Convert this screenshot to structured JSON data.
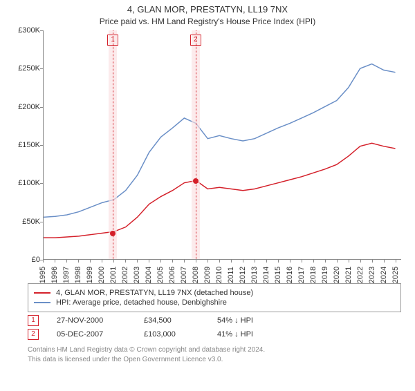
{
  "title": "4, GLAN MOR, PRESTATYN, LL19 7NX",
  "subtitle": "Price paid vs. HM Land Registry's House Price Index (HPI)",
  "chart": {
    "type": "line",
    "x_years": [
      1995,
      1996,
      1997,
      1998,
      1999,
      2000,
      2001,
      2002,
      2003,
      2004,
      2005,
      2006,
      2007,
      2008,
      2009,
      2010,
      2011,
      2012,
      2013,
      2014,
      2015,
      2016,
      2017,
      2018,
      2019,
      2020,
      2021,
      2022,
      2023,
      2024,
      2025
    ],
    "xlim": [
      1995,
      2025.5
    ],
    "ylim": [
      0,
      300000
    ],
    "ytick_step": 50000,
    "ytick_labels": [
      "£0",
      "£50K",
      "£100K",
      "£150K",
      "£200K",
      "£250K",
      "£300K"
    ],
    "grid_color": "#cccccc",
    "background_color": "#ffffff",
    "label_fontsize": 11,
    "series": [
      {
        "id": "hpi",
        "color": "#6a8fc7",
        "width": 1.5,
        "points": [
          [
            1995,
            55000
          ],
          [
            1996,
            56000
          ],
          [
            1997,
            58000
          ],
          [
            1998,
            62000
          ],
          [
            1999,
            68000
          ],
          [
            2000,
            74000
          ],
          [
            2001,
            78000
          ],
          [
            2002,
            90000
          ],
          [
            2003,
            110000
          ],
          [
            2004,
            140000
          ],
          [
            2005,
            160000
          ],
          [
            2006,
            172000
          ],
          [
            2007,
            185000
          ],
          [
            2008,
            178000
          ],
          [
            2009,
            158000
          ],
          [
            2010,
            162000
          ],
          [
            2011,
            158000
          ],
          [
            2012,
            155000
          ],
          [
            2013,
            158000
          ],
          [
            2014,
            165000
          ],
          [
            2015,
            172000
          ],
          [
            2016,
            178000
          ],
          [
            2017,
            185000
          ],
          [
            2018,
            192000
          ],
          [
            2019,
            200000
          ],
          [
            2020,
            208000
          ],
          [
            2021,
            225000
          ],
          [
            2022,
            250000
          ],
          [
            2023,
            256000
          ],
          [
            2024,
            248000
          ],
          [
            2025,
            245000
          ]
        ]
      },
      {
        "id": "property",
        "color": "#d4202a",
        "width": 1.5,
        "points": [
          [
            1995,
            28000
          ],
          [
            1996,
            28000
          ],
          [
            1997,
            29000
          ],
          [
            1998,
            30000
          ],
          [
            1999,
            32000
          ],
          [
            2000,
            34000
          ],
          [
            2001,
            36000
          ],
          [
            2002,
            42000
          ],
          [
            2003,
            55000
          ],
          [
            2004,
            72000
          ],
          [
            2005,
            82000
          ],
          [
            2006,
            90000
          ],
          [
            2007,
            100000
          ],
          [
            2008,
            103000
          ],
          [
            2009,
            92000
          ],
          [
            2010,
            94000
          ],
          [
            2011,
            92000
          ],
          [
            2012,
            90000
          ],
          [
            2013,
            92000
          ],
          [
            2014,
            96000
          ],
          [
            2015,
            100000
          ],
          [
            2016,
            104000
          ],
          [
            2017,
            108000
          ],
          [
            2018,
            113000
          ],
          [
            2019,
            118000
          ],
          [
            2020,
            124000
          ],
          [
            2021,
            135000
          ],
          [
            2022,
            148000
          ],
          [
            2023,
            152000
          ],
          [
            2024,
            148000
          ],
          [
            2025,
            145000
          ]
        ]
      }
    ],
    "markers": [
      {
        "n": "1",
        "year": 2000.9,
        "price": 34500,
        "box_color": "#d4202a",
        "band_color": "#fbe0e2",
        "dash_color": "#d4202a"
      },
      {
        "n": "2",
        "year": 2007.93,
        "price": 103000,
        "box_color": "#d4202a",
        "band_color": "#fbe0e2",
        "dash_color": "#d4202a"
      }
    ]
  },
  "legend": [
    {
      "color": "#d4202a",
      "label": "4, GLAN MOR, PRESTATYN, LL19 7NX (detached house)"
    },
    {
      "color": "#6a8fc7",
      "label": "HPI: Average price, detached house, Denbighshire"
    }
  ],
  "events": [
    {
      "n": "1",
      "box_color": "#d4202a",
      "date": "27-NOV-2000",
      "price": "£34,500",
      "delta": "54% ↓ HPI"
    },
    {
      "n": "2",
      "box_color": "#d4202a",
      "date": "05-DEC-2007",
      "price": "£103,000",
      "delta": "41% ↓ HPI"
    }
  ],
  "footnote_l1": "Contains HM Land Registry data © Crown copyright and database right 2024.",
  "footnote_l2": "This data is licensed under the Open Government Licence v3.0."
}
